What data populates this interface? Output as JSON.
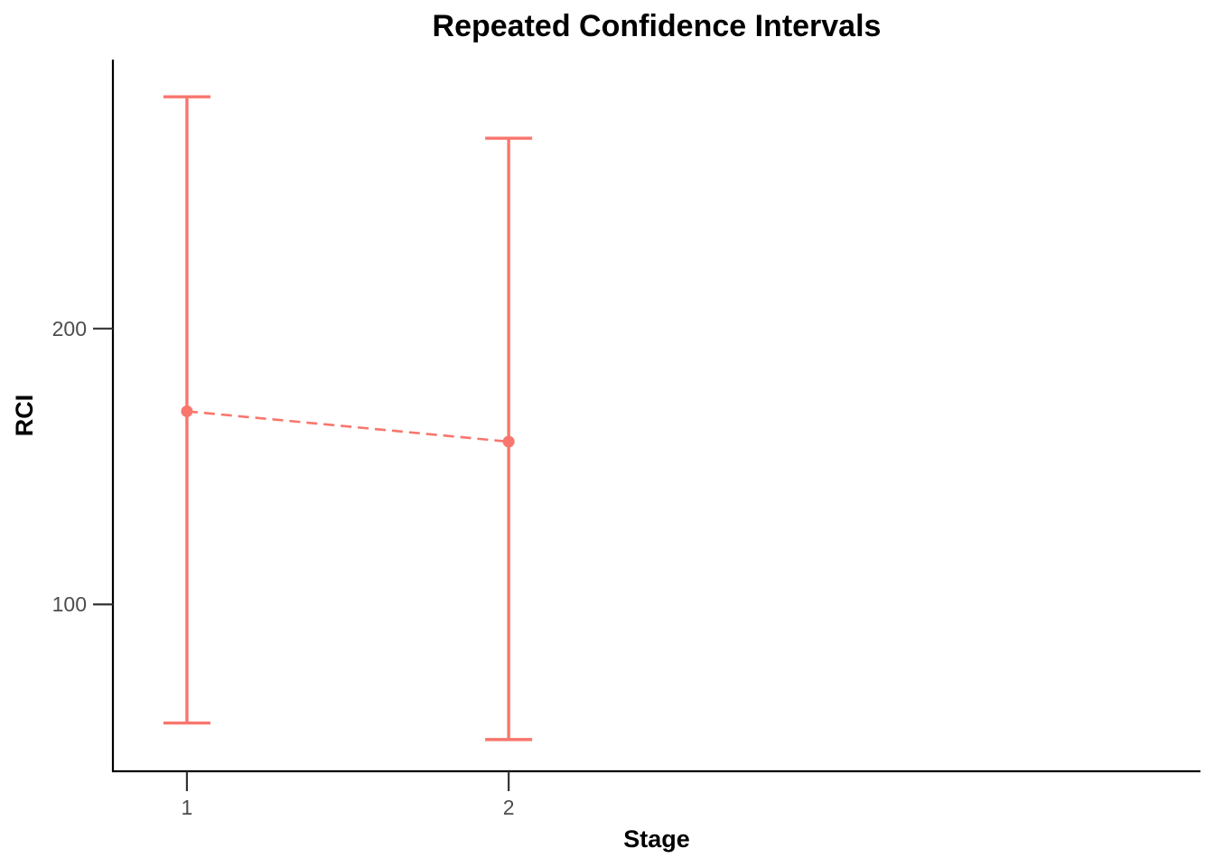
{
  "chart_data": {
    "type": "errorbar",
    "title": "Repeated Confidence Intervals",
    "xlabel": "Stage",
    "ylabel": "RCI",
    "x_ticks": [
      "1",
      "2"
    ],
    "y_ticks": [
      "100",
      "200"
    ],
    "x_range": [
      0.77,
      4.15
    ],
    "y_range": [
      39.5,
      297.5
    ],
    "grid": false,
    "legend": "none",
    "color": "#f8766d",
    "points": [
      {
        "stage": 1,
        "estimate": 170,
        "lower": 57,
        "upper": 284
      },
      {
        "stage": 2,
        "estimate": 159,
        "lower": 51,
        "upper": 269
      }
    ]
  }
}
